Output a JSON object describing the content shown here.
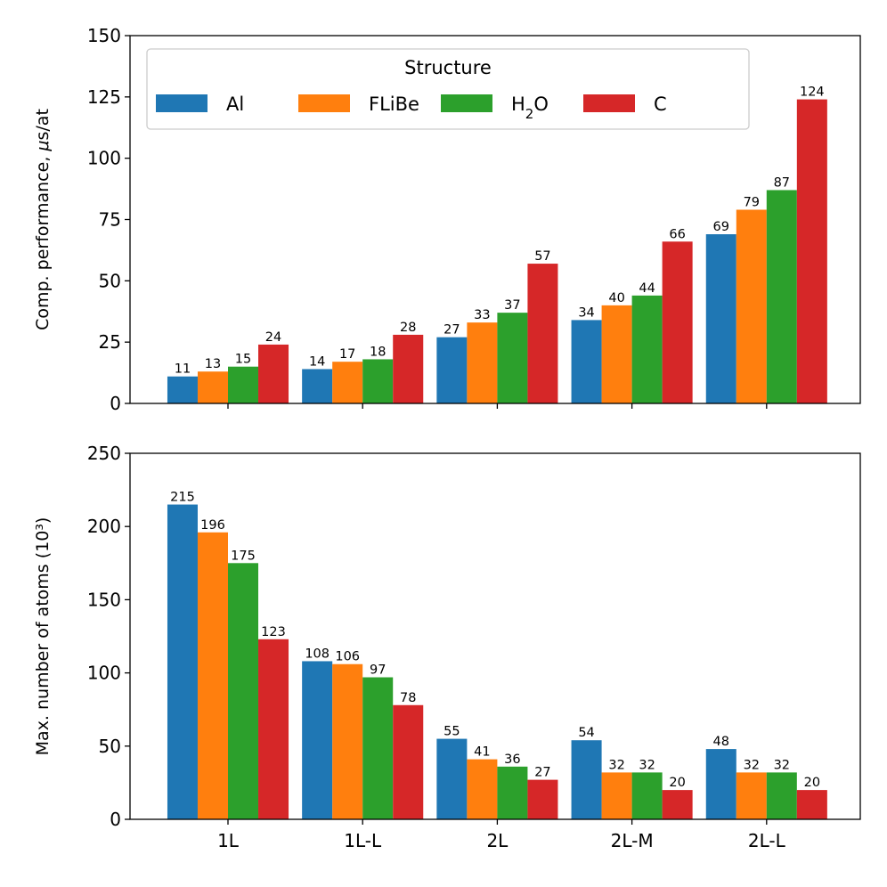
{
  "chart_data": [
    {
      "type": "bar",
      "categories": [
        "1L",
        "1L-L",
        "2L",
        "2L-M",
        "2L-L"
      ],
      "series": [
        {
          "name": "Al",
          "color": "#1f77b4",
          "values": [
            11,
            14,
            27,
            34,
            69
          ]
        },
        {
          "name": "FLiBe",
          "color": "#ff7f0e",
          "values": [
            13,
            17,
            33,
            40,
            79
          ]
        },
        {
          "name": "H2O",
          "color": "#2ca02c",
          "values": [
            15,
            18,
            37,
            44,
            87
          ]
        },
        {
          "name": "C",
          "color": "#d62728",
          "values": [
            24,
            28,
            57,
            66,
            124
          ]
        }
      ],
      "ylabel": "Comp. performance, μs/at",
      "ylim": [
        0,
        150
      ],
      "yticks": [
        0,
        25,
        50,
        75,
        100,
        125,
        150
      ],
      "legend": {
        "title": "Structure",
        "placement": "top-left",
        "ncols": 4
      },
      "show_x_tick_labels": false
    },
    {
      "type": "bar",
      "categories": [
        "1L",
        "1L-L",
        "2L",
        "2L-M",
        "2L-L"
      ],
      "series": [
        {
          "name": "Al",
          "color": "#1f77b4",
          "values": [
            215,
            108,
            55,
            54,
            48
          ]
        },
        {
          "name": "FLiBe",
          "color": "#ff7f0e",
          "values": [
            196,
            106,
            41,
            32,
            32
          ]
        },
        {
          "name": "H2O",
          "color": "#2ca02c",
          "values": [
            175,
            97,
            36,
            32,
            32
          ]
        },
        {
          "name": "C",
          "color": "#d62728",
          "values": [
            123,
            78,
            27,
            20,
            20
          ]
        }
      ],
      "ylabel": "Max. number of atoms (10³)",
      "ylim": [
        0,
        250
      ],
      "yticks": [
        0,
        50,
        100,
        150,
        200,
        250
      ],
      "show_x_tick_labels": true
    }
  ]
}
